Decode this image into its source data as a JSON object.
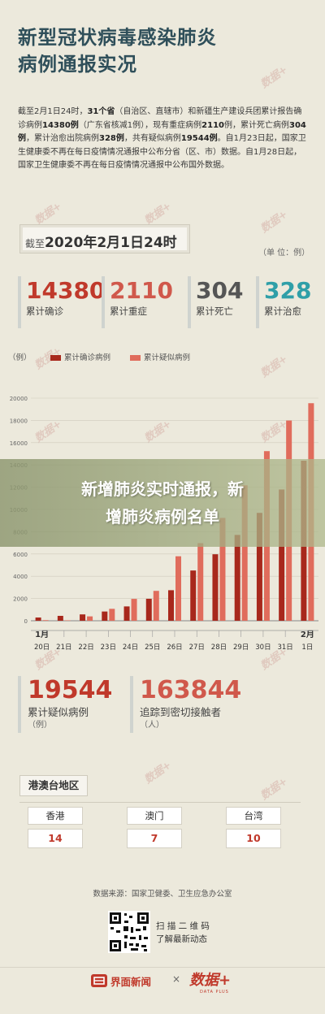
{
  "header": {
    "title_line1": "新型冠状病毒感染肺炎",
    "title_line2": "病例通报实况"
  },
  "intro": {
    "p1": "截至2月1日24时，",
    "p1_bold": "31个省",
    "p2": "（自治区、直辖市）和新疆生产建设兵团累计报告确诊病例",
    "p2_bold": "14380例",
    "p3": "（广东省核减1例），现有重症病例",
    "p3_bold": "2110",
    "p4": "例，累计死亡病例",
    "p4_bold": "304例",
    "p5": "，累计治愈出院病例",
    "p5_bold": "328例",
    "p6": "，共有疑似病例",
    "p6_bold": "19544例",
    "p7": "。自1月23日起，国家卫生健康委不再在每日疫情情况通报中公布分省（区、市）数据。自1月28日起，国家卫生健康委不再在每日疫情情况通报中公布国外数据。"
  },
  "date_box": {
    "prefix": "截至",
    "date": "2020年2月1日24时"
  },
  "unit_label": "（单 位：例）",
  "stats": [
    {
      "value": "14380",
      "label": "累计确诊",
      "color": "#c0392b"
    },
    {
      "value": "2110",
      "label": "累计重症",
      "color": "#d0584b"
    },
    {
      "value": "304",
      "label": "累计死亡",
      "color": "#555555"
    },
    {
      "value": "328",
      "label": "累计治愈",
      "color": "#2f9fa8"
    }
  ],
  "legend": {
    "unit": "（例）",
    "series1": "累计确诊病例",
    "series2": "累计疑似病例"
  },
  "chart_data": {
    "type": "bar",
    "categories": [
      "20日",
      "21日",
      "22日",
      "23日",
      "24日",
      "25日",
      "26日",
      "27日",
      "28日",
      "29日",
      "30日",
      "31日",
      "1日"
    ],
    "month_labels": {
      "start": "1月",
      "end": "2月"
    },
    "series": [
      {
        "name": "累计确诊病例",
        "color": "#a8281c",
        "values": [
          291,
          440,
          571,
          830,
          1287,
          1975,
          2744,
          4515,
          5974,
          7711,
          9692,
          11791,
          14380
        ]
      },
      {
        "name": "累计疑似病例",
        "color": "#e06c5c",
        "values": [
          54,
          37,
          393,
          1072,
          1965,
          2684,
          5794,
          6973,
          9239,
          12167,
          15238,
          17988,
          19544
        ]
      }
    ],
    "ylim": [
      0,
      20000
    ],
    "yticks": [
      "0",
      "2000",
      "4000",
      "6000",
      "8000",
      "10000",
      "12000",
      "14000",
      "16000",
      "18000",
      "20000"
    ]
  },
  "banner": {
    "line1": "新增肺炎实时通报，新",
    "line2": "增肺炎病例名单"
  },
  "big_stats": [
    {
      "value": "19544",
      "label": "累计疑似病例",
      "sub": "（例）",
      "color": "#c0392b"
    },
    {
      "value": "163844",
      "label": "追踪到密切接触者",
      "sub": "（人）",
      "color": "#d0584b"
    }
  ],
  "regions": {
    "title": "港澳台地区",
    "items": [
      {
        "name": "香港",
        "value": "14"
      },
      {
        "name": "澳门",
        "value": "7"
      },
      {
        "name": "台湾",
        "value": "10"
      }
    ]
  },
  "footer": {
    "source": "数据来源：国家卫健委、卫生应急办公室",
    "scan_line1": "扫 描 二 维 码",
    "scan_line2": "了解最新动态",
    "logo1": "界面新闻",
    "times": "×",
    "logo2": "数据+",
    "logo2_sub": "DATA PLUS"
  },
  "watermark": "数据+"
}
